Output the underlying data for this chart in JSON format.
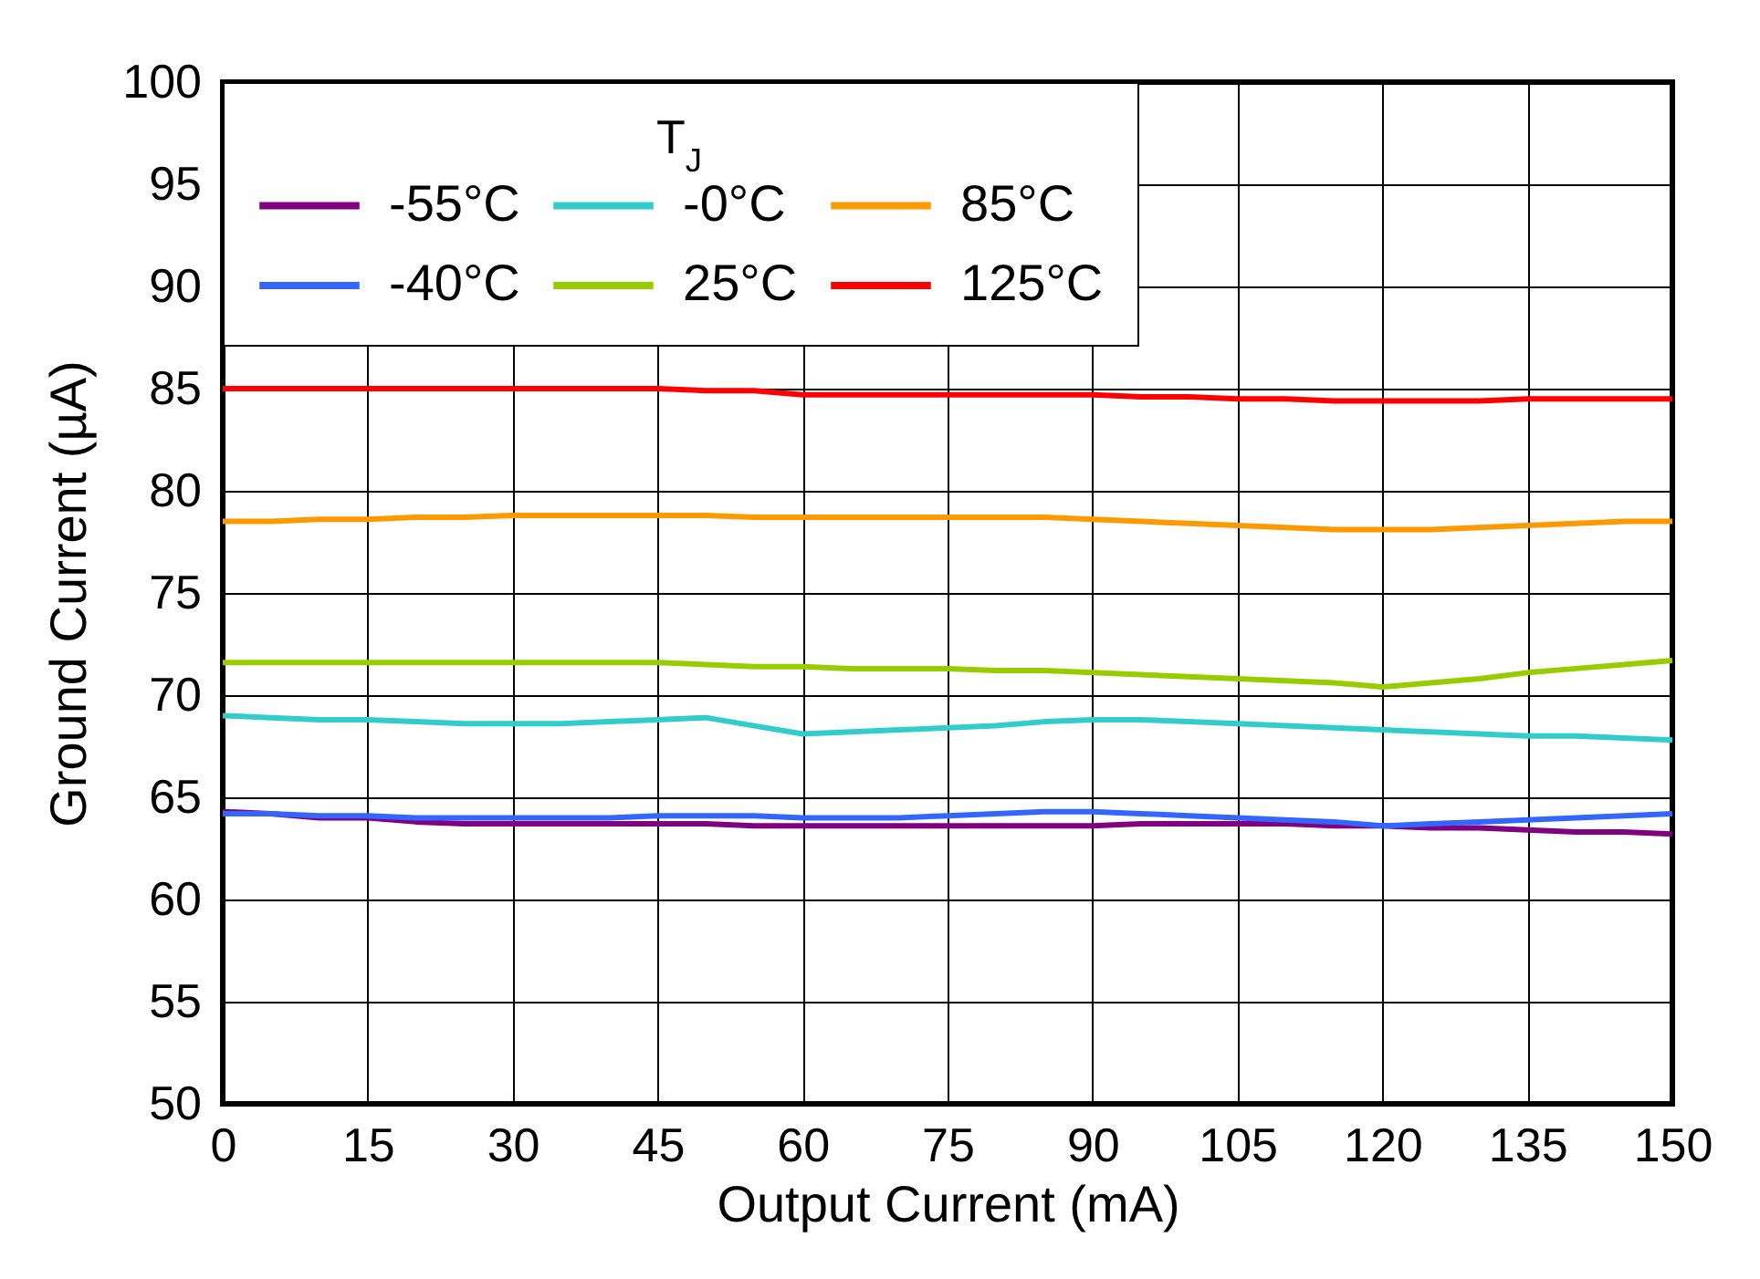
{
  "chart_data": {
    "type": "line",
    "xlabel": "Output Current (mA)",
    "ylabel": "Ground Current (µA)",
    "legend_title": "T$_{J}$",
    "x": [
      0,
      5,
      10,
      15,
      20,
      25,
      30,
      35,
      40,
      45,
      50,
      55,
      60,
      65,
      70,
      75,
      80,
      85,
      90,
      95,
      100,
      105,
      110,
      115,
      120,
      125,
      130,
      135,
      140,
      145,
      150
    ],
    "series": [
      {
        "name": "-55°C",
        "color": "#800080",
        "values": [
          64.3,
          64.2,
          64.0,
          64.0,
          63.8,
          63.7,
          63.7,
          63.7,
          63.7,
          63.7,
          63.7,
          63.6,
          63.6,
          63.6,
          63.6,
          63.6,
          63.6,
          63.6,
          63.6,
          63.7,
          63.7,
          63.7,
          63.7,
          63.6,
          63.6,
          63.5,
          63.5,
          63.4,
          63.3,
          63.3,
          63.2
        ]
      },
      {
        "name": "-0°C",
        "color": "#33cccc",
        "values": [
          69.0,
          68.9,
          68.8,
          68.8,
          68.7,
          68.6,
          68.6,
          68.6,
          68.7,
          68.8,
          68.9,
          68.5,
          68.1,
          68.2,
          68.3,
          68.4,
          68.5,
          68.7,
          68.8,
          68.8,
          68.7,
          68.6,
          68.5,
          68.4,
          68.3,
          68.2,
          68.1,
          68.0,
          68.0,
          67.9,
          67.8
        ]
      },
      {
        "name": "85°C",
        "color": "#ff9900",
        "values": [
          78.5,
          78.5,
          78.6,
          78.6,
          78.7,
          78.7,
          78.8,
          78.8,
          78.8,
          78.8,
          78.8,
          78.7,
          78.7,
          78.7,
          78.7,
          78.7,
          78.7,
          78.7,
          78.6,
          78.5,
          78.4,
          78.3,
          78.2,
          78.1,
          78.1,
          78.1,
          78.2,
          78.3,
          78.4,
          78.5,
          78.5
        ]
      },
      {
        "name": "-40°C",
        "color": "#3366ff",
        "values": [
          64.2,
          64.2,
          64.1,
          64.1,
          64.0,
          64.0,
          64.0,
          64.0,
          64.0,
          64.1,
          64.1,
          64.1,
          64.0,
          64.0,
          64.0,
          64.1,
          64.2,
          64.3,
          64.3,
          64.2,
          64.1,
          64.0,
          63.9,
          63.8,
          63.6,
          63.7,
          63.8,
          63.9,
          64.0,
          64.1,
          64.2
        ]
      },
      {
        "name": "25°C",
        "color": "#99cc00",
        "values": [
          71.6,
          71.6,
          71.6,
          71.6,
          71.6,
          71.6,
          71.6,
          71.6,
          71.6,
          71.6,
          71.5,
          71.4,
          71.4,
          71.3,
          71.3,
          71.3,
          71.2,
          71.2,
          71.1,
          71.0,
          70.9,
          70.8,
          70.7,
          70.6,
          70.4,
          70.6,
          70.8,
          71.1,
          71.3,
          71.5,
          71.7
        ]
      },
      {
        "name": "125°C",
        "color": "#ff0000",
        "values": [
          85.0,
          85.0,
          85.0,
          85.0,
          85.0,
          85.0,
          85.0,
          85.0,
          85.0,
          85.0,
          84.9,
          84.9,
          84.7,
          84.7,
          84.7,
          84.7,
          84.7,
          84.7,
          84.7,
          84.6,
          84.6,
          84.5,
          84.5,
          84.4,
          84.4,
          84.4,
          84.4,
          84.5,
          84.5,
          84.5,
          84.5
        ]
      }
    ],
    "xlim": [
      0,
      150
    ],
    "ylim": [
      50,
      100
    ],
    "xticks": [
      0,
      15,
      30,
      45,
      60,
      75,
      90,
      105,
      120,
      135,
      150
    ],
    "yticks": [
      50,
      55,
      60,
      65,
      70,
      75,
      80,
      85,
      90,
      95,
      100
    ],
    "grid": true,
    "legend": "top left",
    "line_style": "solid"
  }
}
